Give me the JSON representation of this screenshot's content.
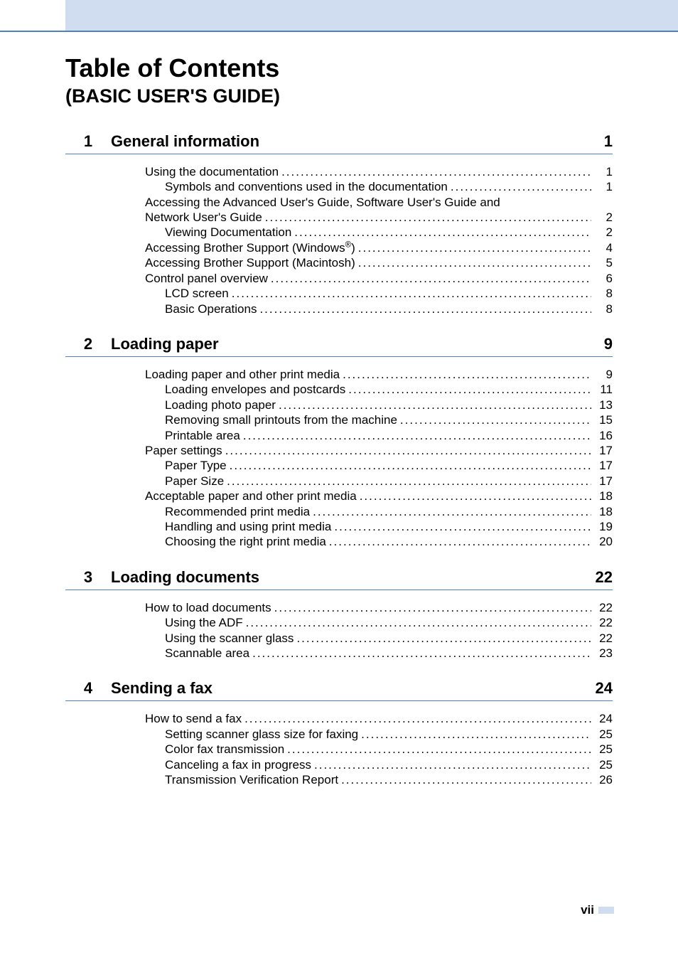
{
  "colors": {
    "rule": "#5080c0",
    "header_fill": "#d0ddf0",
    "text": "#000000",
    "page_bg": "#ffffff"
  },
  "title": {
    "main": "Table of Contents",
    "sub": "(BASIC USER'S GUIDE)"
  },
  "chapters": [
    {
      "num": "1",
      "title": "General information",
      "page": "1",
      "entries": [
        {
          "label": "Using the documentation",
          "page": "1",
          "indent": 0
        },
        {
          "label": "Symbols and conventions used in the documentation",
          "page": "1",
          "indent": 1
        },
        {
          "label": "Accessing the Advanced User's Guide, Software User's Guide and",
          "continuation": true,
          "indent": 0
        },
        {
          "label": "Network User's Guide",
          "page": "2",
          "indent": 0
        },
        {
          "label": "Viewing Documentation",
          "page": "2",
          "indent": 1
        },
        {
          "label_html": "Accessing Brother Support (Windows<sup>®</sup>)",
          "label": "Accessing Brother Support (Windows®)",
          "page": "4",
          "indent": 0
        },
        {
          "label": "Accessing Brother Support (Macintosh)",
          "page": "5",
          "indent": 0
        },
        {
          "label": "Control panel overview",
          "page": "6",
          "indent": 0
        },
        {
          "label": "LCD screen",
          "page": "8",
          "indent": 1
        },
        {
          "label": "Basic Operations",
          "page": "8",
          "indent": 1
        }
      ]
    },
    {
      "num": "2",
      "title": "Loading paper",
      "page": "9",
      "entries": [
        {
          "label": "Loading paper and other print media",
          "page": "9",
          "indent": 0
        },
        {
          "label": "Loading envelopes and postcards",
          "page": "11",
          "indent": 1
        },
        {
          "label": "Loading photo paper",
          "page": "13",
          "indent": 1
        },
        {
          "label": "Removing small printouts from the machine",
          "page": "15",
          "indent": 1
        },
        {
          "label": "Printable area",
          "page": "16",
          "indent": 1
        },
        {
          "label": "Paper settings",
          "page": "17",
          "indent": 0
        },
        {
          "label": "Paper Type",
          "page": "17",
          "indent": 1
        },
        {
          "label": "Paper Size",
          "page": "17",
          "indent": 1
        },
        {
          "label": "Acceptable paper and other print media",
          "page": "18",
          "indent": 0
        },
        {
          "label": "Recommended print media",
          "page": "18",
          "indent": 1
        },
        {
          "label": "Handling and using print media",
          "page": "19",
          "indent": 1
        },
        {
          "label": "Choosing the right print media",
          "page": "20",
          "indent": 1
        }
      ]
    },
    {
      "num": "3",
      "title": "Loading documents",
      "page": "22",
      "entries": [
        {
          "label": "How to load documents",
          "page": "22",
          "indent": 0
        },
        {
          "label": "Using the ADF",
          "page": "22",
          "indent": 1
        },
        {
          "label": "Using the scanner glass",
          "page": "22",
          "indent": 1
        },
        {
          "label": "Scannable area",
          "page": "23",
          "indent": 1
        }
      ]
    },
    {
      "num": "4",
      "title": "Sending a fax",
      "page": "24",
      "entries": [
        {
          "label": "How to send a fax",
          "page": "24",
          "indent": 0
        },
        {
          "label": "Setting scanner glass size for faxing",
          "page": "25",
          "indent": 1
        },
        {
          "label": "Color fax transmission",
          "page": "25",
          "indent": 1
        },
        {
          "label": "Canceling a fax in progress",
          "page": "25",
          "indent": 1
        },
        {
          "label": "Transmission Verification Report",
          "page": "26",
          "indent": 1
        }
      ]
    }
  ],
  "footer": {
    "page_roman": "vii"
  }
}
